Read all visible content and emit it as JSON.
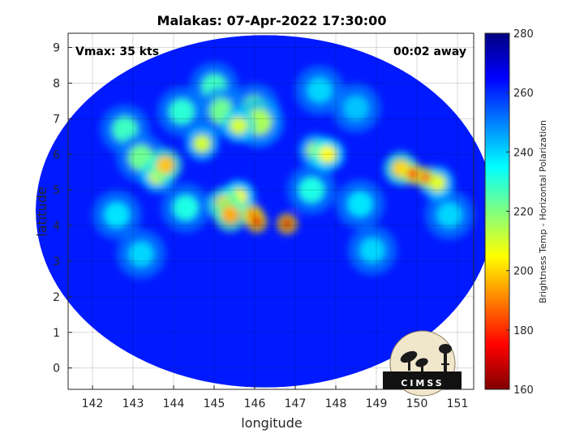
{
  "chart_data": {
    "type": "heatmap",
    "title": "Malakas: 07-Apr-2022 17:30:00",
    "xlabel": "longitude",
    "ylabel": "latitude",
    "xlim": [
      141.4,
      151.4
    ],
    "ylim": [
      -0.6,
      9.4
    ],
    "xticks": [
      142,
      143,
      144,
      145,
      146,
      147,
      148,
      149,
      150,
      151
    ],
    "yticks": [
      0,
      1,
      2,
      3,
      4,
      5,
      6,
      7,
      8,
      9
    ],
    "grid": true,
    "annotations": {
      "vmax": "Vmax: 35 kts",
      "time_offset": "00:02 away"
    },
    "colorbar": {
      "label": "Brightness Temp - Horizontal Polarization",
      "range": [
        160,
        280
      ],
      "ticks": [
        160,
        180,
        200,
        220,
        240,
        260,
        280
      ],
      "colormap": "jet"
    },
    "swath": {
      "center": [
        146.25,
        4.4
      ],
      "radius_x_deg": 5.65,
      "radius_y_deg": 4.95
    },
    "cold_features": [
      {
        "lon": 146.8,
        "lat": 4.05,
        "tb": 170
      },
      {
        "lon": 146.05,
        "lat": 4.1,
        "tb": 172
      },
      {
        "lon": 145.95,
        "lat": 4.3,
        "tb": 176
      },
      {
        "lon": 145.4,
        "lat": 4.3,
        "tb": 195
      },
      {
        "lon": 145.25,
        "lat": 4.6,
        "tb": 200
      },
      {
        "lon": 145.6,
        "lat": 4.8,
        "tb": 205
      },
      {
        "lon": 149.9,
        "lat": 5.45,
        "tb": 178
      },
      {
        "lon": 150.2,
        "lat": 5.35,
        "tb": 182
      },
      {
        "lon": 149.6,
        "lat": 5.6,
        "tb": 200
      },
      {
        "lon": 150.5,
        "lat": 5.2,
        "tb": 208
      },
      {
        "lon": 147.8,
        "lat": 6.0,
        "tb": 205
      },
      {
        "lon": 147.5,
        "lat": 6.1,
        "tb": 212
      },
      {
        "lon": 143.8,
        "lat": 5.7,
        "tb": 198
      },
      {
        "lon": 143.6,
        "lat": 5.4,
        "tb": 208
      },
      {
        "lon": 144.7,
        "lat": 6.3,
        "tb": 210
      },
      {
        "lon": 145.6,
        "lat": 6.8,
        "tb": 210
      },
      {
        "lon": 146.1,
        "lat": 6.9,
        "tb": 215
      },
      {
        "lon": 145.2,
        "lat": 7.2,
        "tb": 222
      },
      {
        "lon": 143.2,
        "lat": 5.9,
        "tb": 222
      },
      {
        "lon": 142.8,
        "lat": 6.7,
        "tb": 228
      },
      {
        "lon": 144.2,
        "lat": 7.2,
        "tb": 230
      },
      {
        "lon": 145.0,
        "lat": 7.9,
        "tb": 228
      },
      {
        "lon": 146.0,
        "lat": 7.3,
        "tb": 222
      },
      {
        "lon": 147.4,
        "lat": 5.0,
        "tb": 232
      },
      {
        "lon": 148.6,
        "lat": 4.6,
        "tb": 238
      },
      {
        "lon": 148.9,
        "lat": 3.3,
        "tb": 240
      },
      {
        "lon": 144.3,
        "lat": 4.5,
        "tb": 232
      },
      {
        "lon": 142.6,
        "lat": 4.3,
        "tb": 238
      },
      {
        "lon": 143.2,
        "lat": 3.2,
        "tb": 240
      },
      {
        "lon": 147.6,
        "lat": 7.8,
        "tb": 240
      },
      {
        "lon": 148.5,
        "lat": 7.3,
        "tb": 242
      },
      {
        "lon": 150.8,
        "lat": 4.3,
        "tb": 240
      }
    ]
  },
  "logo": {
    "text": "CIMSS"
  }
}
